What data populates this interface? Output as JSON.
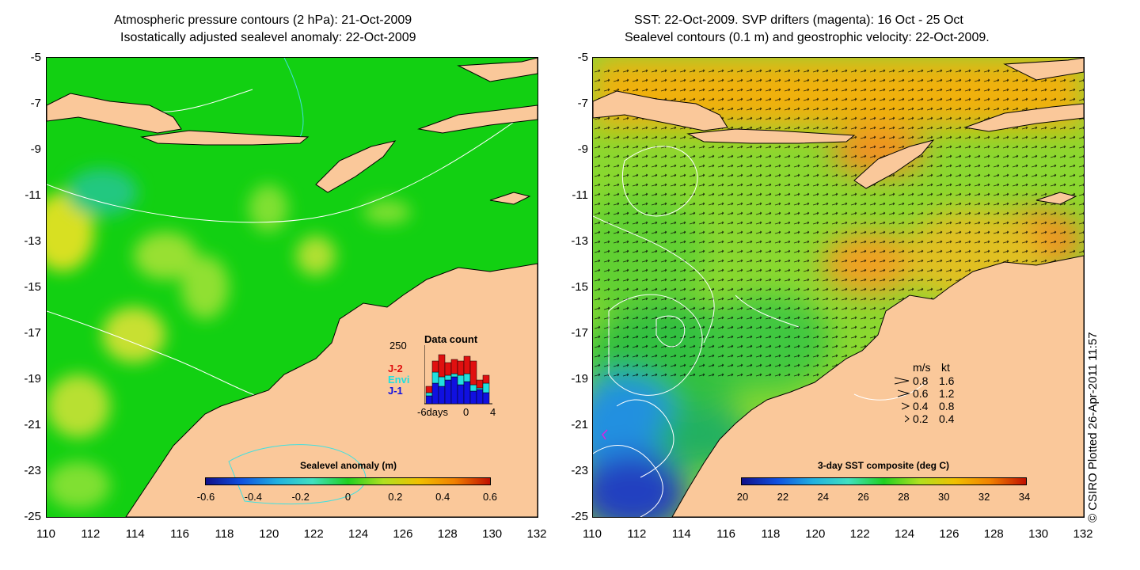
{
  "left_panel": {
    "title_line1": "Atmospheric pressure contours (2 hPa): 21-Oct-2009",
    "title_line2": "Isostatically adjusted sealevel anomaly: 22-Oct-2009",
    "colorbar": {
      "title": "Sealevel anomaly (m)",
      "labels": [
        "-0.6",
        "-0.4",
        "-0.2",
        "0",
        "0.2",
        "0.4",
        "0.6"
      ]
    },
    "inset": {
      "title": "Data count",
      "y_max_label": "250",
      "x_labels": [
        "-6days",
        "0",
        "4"
      ],
      "legend": [
        {
          "label": "J-2",
          "color": "#e01010"
        },
        {
          "label": "Envi",
          "color": "#20e0e0"
        },
        {
          "label": "J-1",
          "color": "#1010e0"
        }
      ]
    }
  },
  "right_panel": {
    "title_line1": "SST: 22-Oct-2009. SVP drifters (magenta): 16 Oct - 25 Oct",
    "title_line2": "Sealevel contours (0.1 m) and geostrophic velocity: 22-Oct-2009.",
    "colorbar": {
      "title": "3-day SST composite (deg C)",
      "labels": [
        "20",
        "22",
        "24",
        "26",
        "28",
        "30",
        "32",
        "34"
      ]
    },
    "velocity_legend": {
      "header_ms": "m/s",
      "header_kt": "kt",
      "rows": [
        {
          "ms": "0.8",
          "kt": "1.6"
        },
        {
          "ms": "0.6",
          "kt": "1.2"
        },
        {
          "ms": "0.4",
          "kt": "0.8"
        },
        {
          "ms": "0.2",
          "kt": "0.4"
        }
      ]
    },
    "credit": "© CSIRO Plotted 26-Apr-2011 11:57"
  },
  "axes": {
    "y_labels": [
      "-5",
      "-7",
      "-9",
      "-11",
      "-13",
      "-15",
      "-17",
      "-19",
      "-21",
      "-23",
      "-25"
    ],
    "x_labels": [
      "110",
      "112",
      "114",
      "116",
      "118",
      "120",
      "122",
      "124",
      "126",
      "128",
      "130",
      "132"
    ]
  },
  "colors": {
    "ocean_left": "#10d010",
    "land": "#fac89a",
    "contour_white": "#ffffff",
    "contour_cyan": "#40e0e0"
  }
}
